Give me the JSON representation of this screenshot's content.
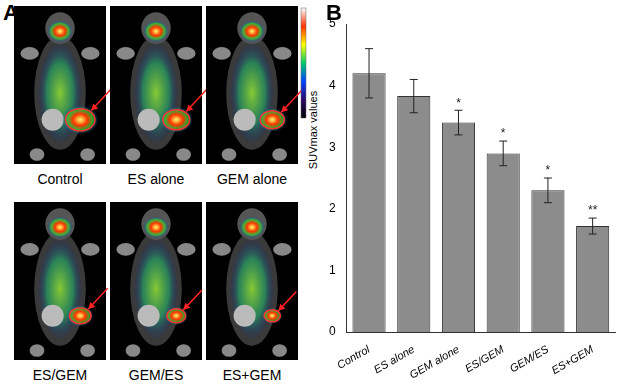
{
  "panel_a": {
    "label": "A",
    "images": [
      "Control",
      "ES alone",
      "GEM alone",
      "ES/GEM",
      "GEM/ES",
      "ES+GEM"
    ],
    "colorbar_label": "SUVmax values"
  },
  "chart_data": {
    "type": "bar",
    "panel_label": "B",
    "categories": [
      "Control",
      "ES alone",
      "GEM alone",
      "ES/GEM",
      "GEM/ES",
      "ES+GEM"
    ],
    "values": [
      4.2,
      3.83,
      3.4,
      2.9,
      2.3,
      1.72
    ],
    "errors": [
      0.4,
      0.27,
      0.2,
      0.2,
      0.2,
      0.13
    ],
    "annotations": [
      null,
      null,
      "*",
      "*",
      "*",
      "**"
    ],
    "color": "#8c8c8c",
    "ylim": [
      0,
      5
    ],
    "yticks": [
      0,
      1,
      2,
      3,
      4,
      5
    ],
    "grid": false
  }
}
